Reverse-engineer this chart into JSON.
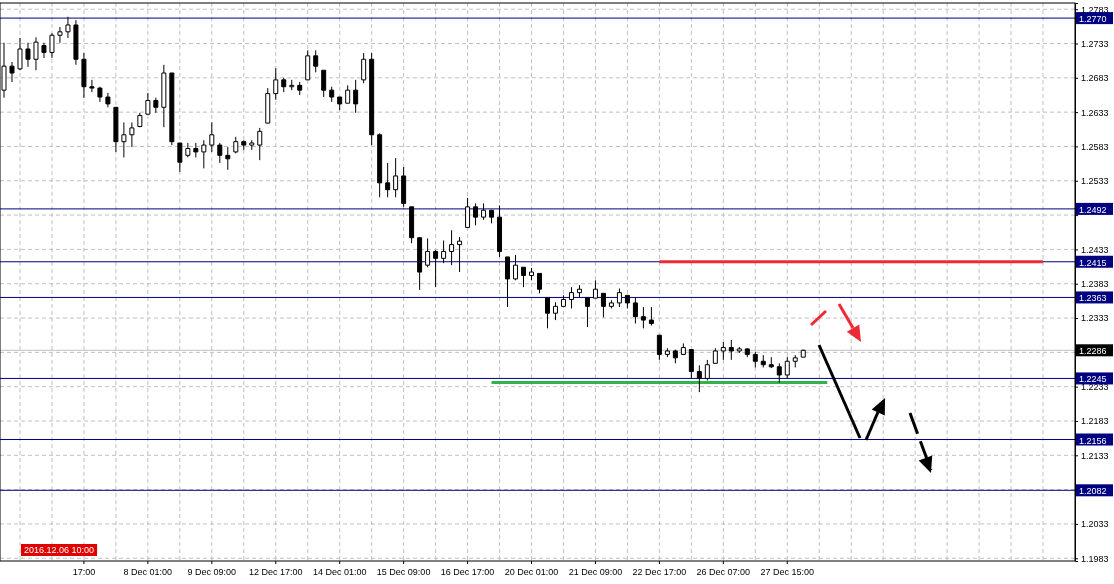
{
  "chart_data": {
    "type": "candlestick",
    "color": "#000000",
    "grid": true,
    "ylim": [
      1.1979,
      1.2792
    ],
    "yticks": [
      1.2783,
      1.2733,
      1.2683,
      1.2633,
      1.2583,
      1.2533,
      {
        "value": 1.2483,
        "label": null
      },
      1.2433,
      1.2383,
      1.2333,
      {
        "value": 1.2283,
        "label": null
      },
      1.2233,
      1.2183,
      1.2133,
      {
        "value": 1.2083,
        "label": null
      },
      1.2033,
      1.1983
    ],
    "categories": [
      null,
      null,
      null,
      null,
      null,
      null,
      null,
      null,
      null,
      null,
      "17:00",
      null,
      null,
      null,
      null,
      null,
      null,
      null,
      "8 Dec 01:00",
      null,
      null,
      null,
      null,
      null,
      null,
      null,
      "9 Dec 09:00",
      null,
      null,
      null,
      null,
      null,
      null,
      null,
      "12 Dec 17:00",
      null,
      null,
      null,
      null,
      null,
      null,
      null,
      "14 Dec 01:00",
      null,
      null,
      null,
      null,
      null,
      null,
      null,
      "15 Dec 09:00",
      null,
      null,
      null,
      null,
      null,
      null,
      null,
      "16 Dec 17:00",
      null,
      null,
      null,
      null,
      null,
      null,
      null,
      "20 Dec 01:00",
      null,
      null,
      null,
      null,
      null,
      null,
      null,
      "21 Dec 09:00",
      null,
      null,
      null,
      null,
      null,
      null,
      null,
      "22 Dec 17:00",
      null,
      null,
      null,
      null,
      null,
      null,
      null,
      "26 Dec 07:00",
      null,
      null,
      null,
      null,
      null,
      null,
      null,
      "27 Dec 15:00",
      null,
      null,
      null,
      null,
      null,
      null,
      null,
      null,
      null,
      null,
      null,
      null,
      null,
      null,
      null,
      null,
      null,
      null,
      null,
      null,
      null,
      null,
      null,
      null,
      null,
      null,
      null,
      null,
      null,
      null,
      null,
      null,
      null,
      null,
      null
    ],
    "ohlc": [
      [
        1.2665,
        1.2734,
        1.2654,
        1.27
      ],
      [
        1.27,
        1.2706,
        1.2677,
        1.269
      ],
      [
        1.2696,
        1.2741,
        1.2694,
        1.2725
      ],
      [
        1.2725,
        1.2734,
        1.2699,
        1.271
      ],
      [
        1.271,
        1.2742,
        1.2694,
        1.2735
      ],
      [
        1.273,
        1.2734,
        1.2712,
        1.272
      ],
      [
        1.272,
        1.2748,
        1.2712,
        1.2745
      ],
      [
        1.2745,
        1.2757,
        1.2734,
        1.275
      ],
      [
        1.275,
        1.2772,
        1.2741,
        1.276
      ],
      [
        1.276,
        1.2767,
        1.2702,
        1.271
      ],
      [
        1.271,
        1.2719,
        1.2654,
        1.267
      ],
      [
        1.267,
        1.268,
        1.2662,
        1.2668
      ],
      [
        1.2668,
        1.267,
        1.2648,
        1.2655
      ],
      [
        1.2655,
        1.2661,
        1.264,
        1.2645
      ],
      [
        1.264,
        1.264,
        1.2575,
        1.259
      ],
      [
        1.259,
        1.2618,
        1.2567,
        1.26
      ],
      [
        1.26,
        1.2618,
        1.2582,
        1.261
      ],
      [
        1.2612,
        1.2632,
        1.2611,
        1.2628
      ],
      [
        1.263,
        1.2661,
        1.2629,
        1.265
      ],
      [
        1.265,
        1.2654,
        1.2632,
        1.264
      ],
      [
        1.264,
        1.2702,
        1.2611,
        1.269
      ],
      [
        1.269,
        1.269,
        1.2585,
        1.259
      ],
      [
        1.2588,
        1.2588,
        1.2546,
        1.256
      ],
      [
        1.257,
        1.2588,
        1.2567,
        1.258
      ],
      [
        1.258,
        1.2588,
        1.2567,
        1.2575
      ],
      [
        1.2575,
        1.2592,
        1.2551,
        1.2585
      ],
      [
        1.2585,
        1.2618,
        1.2575,
        1.26
      ],
      [
        1.2585,
        1.2588,
        1.2559,
        1.257
      ],
      [
        1.257,
        1.2582,
        1.2549,
        1.2565
      ],
      [
        1.2575,
        1.2597,
        1.2573,
        1.259
      ],
      [
        1.259,
        1.2592,
        1.2578,
        1.2585
      ],
      [
        1.2585,
        1.2592,
        1.2578,
        1.2588
      ],
      [
        1.2585,
        1.261,
        1.2563,
        1.2605
      ],
      [
        1.2617,
        1.2668,
        1.2617,
        1.266
      ],
      [
        1.266,
        1.2697,
        1.2651,
        1.268
      ],
      [
        1.268,
        1.2683,
        1.2662,
        1.267
      ],
      [
        1.267,
        1.268,
        1.2665,
        1.2672
      ],
      [
        1.2672,
        1.2677,
        1.2658,
        1.2665
      ],
      [
        1.268,
        1.2723,
        1.268,
        1.2715
      ],
      [
        1.2715,
        1.2723,
        1.2691,
        1.27
      ],
      [
        1.2694,
        1.2694,
        1.2655,
        1.2665
      ],
      [
        1.2665,
        1.267,
        1.2648,
        1.2655
      ],
      [
        1.2655,
        1.2655,
        1.2636,
        1.2645
      ],
      [
        1.2646,
        1.2672,
        1.2646,
        1.2665
      ],
      [
        1.2665,
        1.268,
        1.2632,
        1.2645
      ],
      [
        1.268,
        1.2719,
        1.2675,
        1.271
      ],
      [
        1.271,
        1.2719,
        1.2585,
        1.26
      ],
      [
        1.26,
        1.2602,
        1.2509,
        1.253
      ],
      [
        1.253,
        1.2559,
        1.2509,
        1.252
      ],
      [
        1.252,
        1.2566,
        1.2509,
        1.254
      ],
      [
        1.254,
        1.2553,
        1.2495,
        1.25
      ],
      [
        1.2495,
        1.2495,
        1.2442,
        1.245
      ],
      [
        1.245,
        1.2451,
        1.2374,
        1.24
      ],
      [
        1.241,
        1.2449,
        1.2407,
        1.243
      ],
      [
        1.243,
        1.2432,
        1.2378,
        1.242
      ],
      [
        1.242,
        1.2446,
        1.2413,
        1.243
      ],
      [
        1.243,
        1.2461,
        1.241,
        1.244
      ],
      [
        1.244,
        1.2451,
        1.24,
        1.2445
      ],
      [
        1.2465,
        1.2508,
        1.2465,
        1.2495
      ],
      [
        1.2495,
        1.25,
        1.2468,
        1.248
      ],
      [
        1.248,
        1.25,
        1.2476,
        1.249
      ],
      [
        1.249,
        1.249,
        1.2471,
        1.248
      ],
      [
        1.248,
        1.2497,
        1.2422,
        1.243
      ],
      [
        1.2422,
        1.2422,
        1.2349,
        1.239
      ],
      [
        1.239,
        1.2425,
        1.2388,
        1.241
      ],
      [
        1.2407,
        1.2407,
        1.2378,
        1.2395
      ],
      [
        1.2395,
        1.2406,
        1.2388,
        1.24
      ],
      [
        1.2398,
        1.2398,
        1.2369,
        1.2375
      ],
      [
        1.2363,
        1.2363,
        1.2318,
        1.234
      ],
      [
        1.234,
        1.2356,
        1.233,
        1.235
      ],
      [
        1.235,
        1.2366,
        1.2349,
        1.236
      ],
      [
        1.236,
        1.2378,
        1.2347,
        1.237
      ],
      [
        1.237,
        1.2381,
        1.2363,
        1.2375
      ],
      [
        1.2363,
        1.2363,
        1.232,
        1.235
      ],
      [
        1.2362,
        1.2388,
        1.2362,
        1.2375
      ],
      [
        1.2369,
        1.2369,
        1.2334,
        1.235
      ],
      [
        1.235,
        1.2359,
        1.2347,
        1.2355
      ],
      [
        1.2355,
        1.2376,
        1.2349,
        1.237
      ],
      [
        1.2366,
        1.2366,
        1.2347,
        1.2355
      ],
      [
        1.2355,
        1.2362,
        1.2325,
        1.2335
      ],
      [
        1.2335,
        1.2349,
        1.2318,
        1.233
      ],
      [
        1.233,
        1.2349,
        1.2322,
        1.2325
      ],
      [
        1.2308,
        1.2308,
        1.2272,
        1.228
      ],
      [
        1.228,
        1.2289,
        1.2276,
        1.2285
      ],
      [
        1.2285,
        1.2287,
        1.2267,
        1.2275
      ],
      [
        1.228,
        1.2296,
        1.2279,
        1.229
      ],
      [
        1.2287,
        1.2287,
        1.2245,
        1.2255
      ],
      [
        1.2255,
        1.2264,
        1.2225,
        1.2245
      ],
      [
        1.2245,
        1.2272,
        1.2242,
        1.2265
      ],
      [
        1.2267,
        1.2289,
        1.2267,
        1.2285
      ],
      [
        1.2285,
        1.2298,
        1.2272,
        1.229
      ],
      [
        1.229,
        1.2301,
        1.2272,
        1.2285
      ],
      [
        1.2285,
        1.2291,
        1.2282,
        1.2288
      ],
      [
        1.2288,
        1.2289,
        1.2276,
        1.228
      ],
      [
        1.228,
        1.2284,
        1.2261,
        1.227
      ],
      [
        1.227,
        1.2279,
        1.2261,
        1.2265
      ],
      [
        1.2265,
        1.2276,
        1.226,
        1.2262
      ],
      [
        1.2262,
        1.2267,
        1.2239,
        1.225
      ],
      [
        1.225,
        1.2276,
        1.2245,
        1.227
      ],
      [
        1.227,
        1.2279,
        1.2261,
        1.2275
      ],
      [
        1.2276,
        1.2287,
        1.2276,
        1.2286
      ],
      null,
      null,
      null,
      null,
      null,
      null,
      null,
      null,
      null,
      null,
      null,
      null,
      null,
      null,
      null,
      null,
      null,
      null,
      null,
      null,
      null,
      null,
      null,
      null,
      null,
      null,
      null,
      null,
      null,
      null,
      null,
      null,
      null
    ],
    "series": [
      {
        "type": "line",
        "color": "#ee2a35",
        "values": [
          null,
          null,
          null,
          null,
          null,
          null,
          null,
          null,
          null,
          null,
          null,
          null,
          null,
          null,
          null,
          null,
          null,
          null,
          null,
          null,
          null,
          null,
          null,
          null,
          null,
          null,
          null,
          null,
          null,
          null,
          null,
          null,
          null,
          null,
          null,
          null,
          null,
          null,
          null,
          null,
          null,
          null,
          null,
          null,
          null,
          null,
          null,
          null,
          null,
          null,
          null,
          null,
          null,
          null,
          null,
          null,
          null,
          null,
          null,
          null,
          null,
          null,
          null,
          null,
          null,
          null,
          null,
          null,
          null,
          null,
          null,
          null,
          null,
          null,
          null,
          null,
          null,
          null,
          null,
          null,
          null,
          null,
          1.2415,
          1.2415,
          1.2415,
          1.2415,
          1.2415,
          1.2415,
          1.2415,
          1.2415,
          1.2415,
          1.2415,
          1.2415,
          1.2415,
          1.2415,
          1.2415,
          1.2415,
          1.2415,
          1.2415,
          1.2415,
          1.2415,
          1.2415,
          1.2415,
          1.2415,
          1.2415,
          1.2415,
          1.2415,
          1.2415,
          1.2415,
          1.2415,
          1.2415,
          1.2415,
          1.2415,
          1.2415,
          1.2415,
          1.2415,
          1.2415,
          1.2415,
          1.2415,
          1.2415,
          1.2415,
          1.2415,
          1.2415,
          1.2415,
          1.2415,
          1.2415,
          1.2415,
          1.2415,
          1.2415,
          1.2415,
          1.2415,
          null,
          null,
          null
        ]
      },
      {
        "type": "line",
        "color": "#2fb34a",
        "values": [
          null,
          null,
          null,
          null,
          null,
          null,
          null,
          null,
          null,
          null,
          null,
          null,
          null,
          null,
          null,
          null,
          null,
          null,
          null,
          null,
          null,
          null,
          null,
          null,
          null,
          null,
          null,
          null,
          null,
          null,
          null,
          null,
          null,
          null,
          null,
          null,
          null,
          null,
          null,
          null,
          null,
          null,
          null,
          null,
          null,
          null,
          null,
          null,
          null,
          null,
          null,
          null,
          null,
          null,
          null,
          null,
          null,
          null,
          null,
          null,
          null,
          1.2239,
          1.2239,
          1.2239,
          1.2239,
          1.2239,
          1.2239,
          1.2239,
          1.2239,
          1.2239,
          1.2239,
          1.2239,
          1.2239,
          1.2239,
          1.2239,
          1.2239,
          1.2239,
          1.2239,
          1.2239,
          1.2239,
          1.2239,
          1.2239,
          1.2239,
          1.2239,
          1.2239,
          1.2239,
          1.2239,
          1.2239,
          1.2239,
          1.2239,
          1.2239,
          1.2239,
          1.2239,
          1.2239,
          1.2239,
          1.2239,
          1.2239,
          1.2239,
          1.2239,
          1.2239,
          1.2239,
          1.2239,
          1.2239,
          1.2239,
          null,
          null,
          null,
          null,
          null,
          null,
          null,
          null,
          null,
          null,
          null,
          null,
          null,
          null,
          null,
          null,
          null,
          null,
          null,
          null,
          null,
          null,
          null,
          null,
          null,
          null,
          null,
          null,
          null,
          null
        ]
      }
    ],
    "ref_lines": [
      {
        "axis": "y",
        "value": 1.277,
        "label": "1.2770",
        "color": "#000080"
      },
      {
        "axis": "y",
        "value": 1.2492,
        "label": "1.2492",
        "color": "#000080"
      },
      {
        "axis": "y",
        "value": 1.2415,
        "label": "1.2415",
        "color": "#000080"
      },
      {
        "axis": "y",
        "value": 1.2363,
        "label": "1.2363",
        "color": "#000080"
      },
      {
        "axis": "y",
        "value": 1.2286,
        "label": "1.2286",
        "color": "#c0c0c0"
      },
      {
        "axis": "y",
        "value": 1.2245,
        "label": "1.2245",
        "color": "#000080"
      },
      {
        "axis": "y",
        "value": 1.2156,
        "label": "1.2156",
        "color": "#000080"
      },
      {
        "axis": "y",
        "value": 1.2082,
        "label": "1.2082",
        "color": "#000080"
      }
    ],
    "annotations": [
      "2016.12.06 10:00"
    ]
  }
}
